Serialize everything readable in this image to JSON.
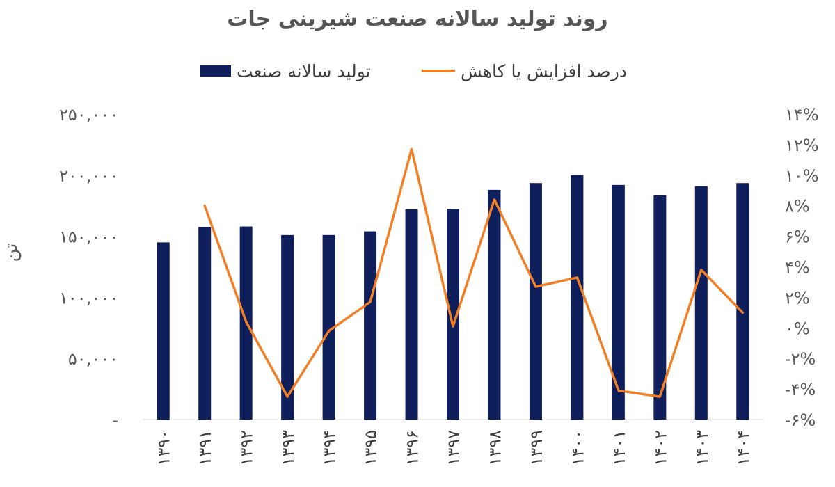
{
  "chart_data": {
    "type": "bar",
    "title": "روند تولید سالانه صنعت شیرینی جات",
    "ylabel": "تن",
    "categories": [
      "۱۳۹۰",
      "۱۳۹۱",
      "۱۳۹۲",
      "۱۳۹۳",
      "۱۳۹۴",
      "۱۳۹۵",
      "۱۳۹۶",
      "۱۳۹۷",
      "۱۳۹۸",
      "۱۳۹۹",
      "۱۴۰۰",
      "۱۴۰۱",
      "۱۴۰۲",
      "۱۴۰۳",
      "۱۴۰۴"
    ],
    "series": [
      {
        "name": "تولید سالانه صنعت",
        "type": "bar",
        "axis": "left",
        "color": "#0f1f5c",
        "values": [
          145000,
          157500,
          158000,
          151000,
          151000,
          154000,
          172000,
          172500,
          188000,
          193500,
          200000,
          192000,
          183500,
          191000,
          193500
        ]
      },
      {
        "name": "درصد افزایش یا کاهش",
        "type": "line",
        "axis": "right",
        "color": "#f07f26",
        "values": [
          null,
          8.0,
          0.4,
          -4.5,
          -0.2,
          1.7,
          11.7,
          0.1,
          8.4,
          2.7,
          3.3,
          -4.1,
          -4.5,
          3.8,
          1.0
        ]
      }
    ],
    "y_left": {
      "min": 0,
      "max": 250000,
      "ticks": [
        0,
        50000,
        100000,
        150000,
        200000,
        250000
      ],
      "tick_labels": [
        "-",
        "۵۰,۰۰۰",
        "۱۰۰,۰۰۰",
        "۱۵۰,۰۰۰",
        "۲۰۰,۰۰۰",
        "۲۵۰,۰۰۰"
      ]
    },
    "y_right": {
      "min": -6,
      "max": 14,
      "ticks": [
        -6,
        -4,
        -2,
        0,
        2,
        4,
        6,
        8,
        10,
        12,
        14
      ],
      "tick_labels": [
        "-۶%",
        "-۴%",
        "-۲%",
        "۰%",
        "۲%",
        "۴%",
        "۶%",
        "۸%",
        "۱۰%",
        "۱۲%",
        "۱۴%"
      ]
    },
    "legend_position": "top",
    "grid": false
  }
}
